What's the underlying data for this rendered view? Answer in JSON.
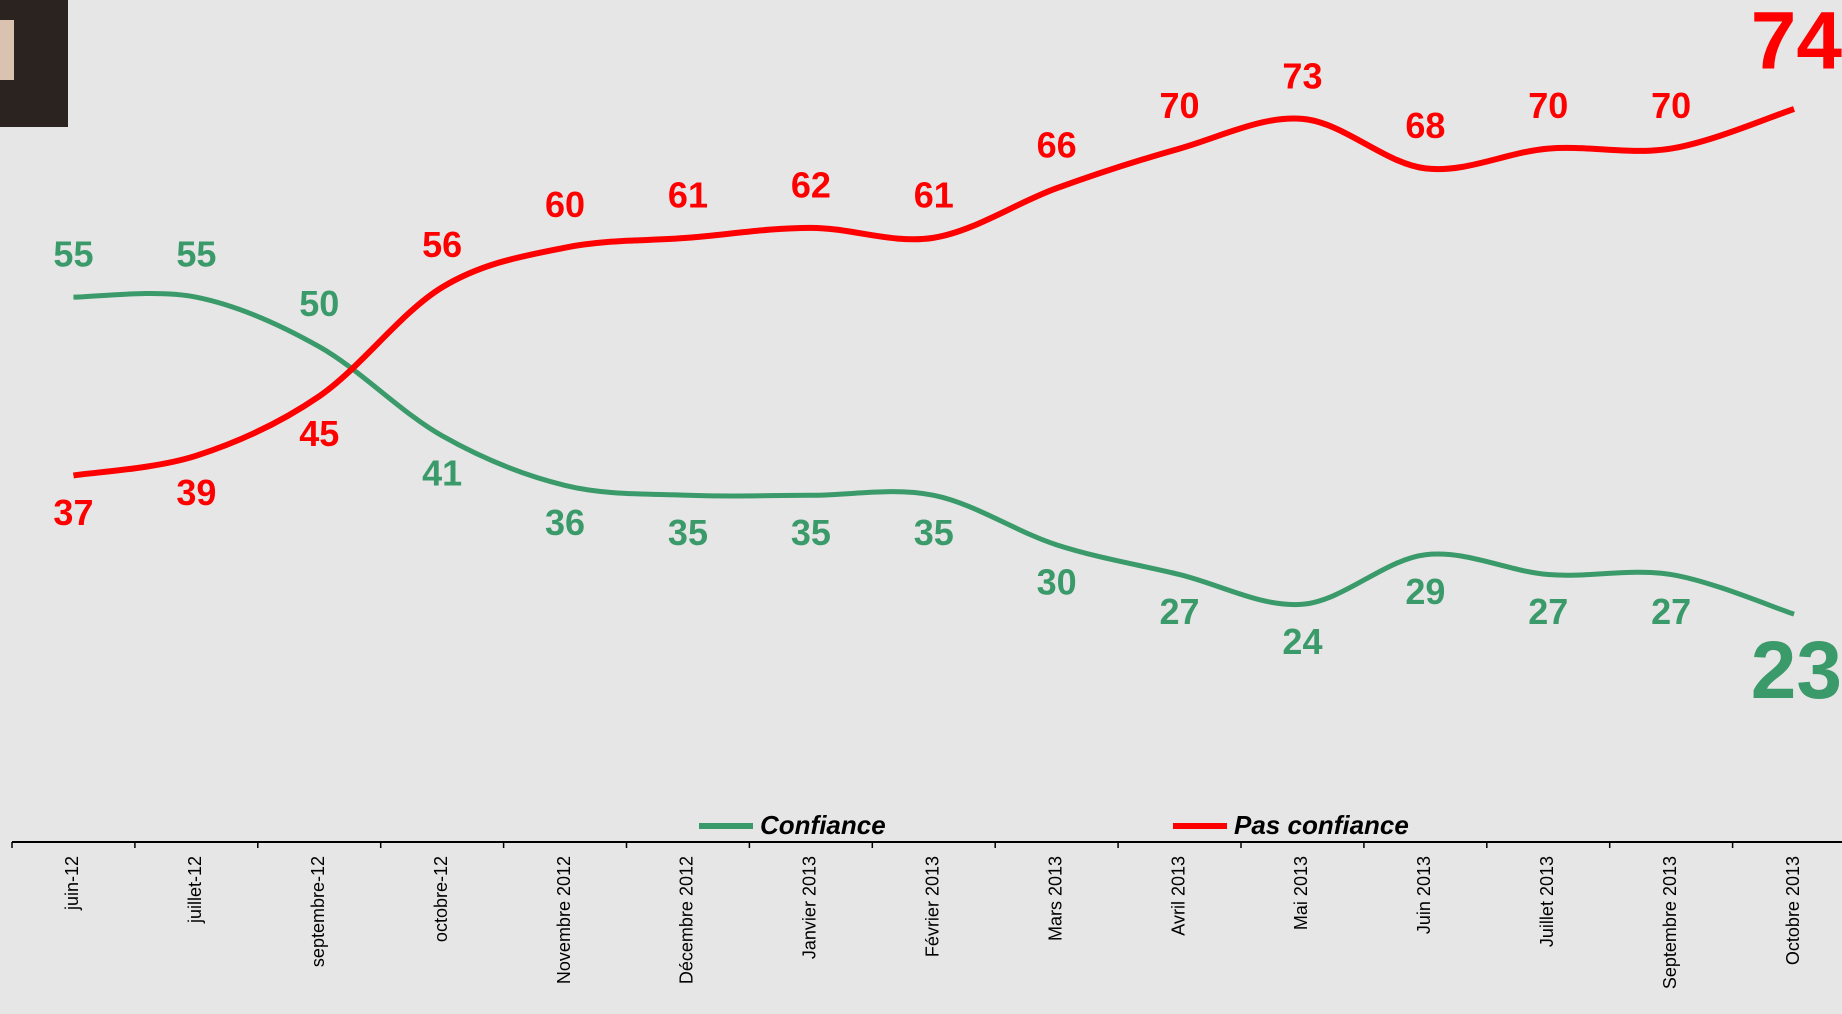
{
  "chart_data": {
    "type": "line",
    "categories": [
      "juin-12",
      "juillet-12",
      "septembre-12",
      "octobre-12",
      "Novembre 2012",
      "Décembre 2012",
      "Janvier 2013",
      "Février 2013",
      "Mars 2013",
      "Avril 2013",
      "Mai 2013",
      "Juin 2013",
      "Juillet 2013",
      "Septembre 2013",
      "Octobre 2013"
    ],
    "series": [
      {
        "name": "Confiance",
        "color": "#3a9a6a",
        "values": [
          55,
          55,
          50,
          41,
          36,
          35,
          35,
          35,
          30,
          27,
          24,
          29,
          27,
          27,
          23
        ]
      },
      {
        "name": "Pas confiance",
        "color": "#ff0000",
        "values": [
          37,
          39,
          45,
          56,
          60,
          61,
          62,
          61,
          66,
          70,
          73,
          68,
          70,
          70,
          74
        ]
      }
    ],
    "ylim": [
      0,
      85
    ]
  }
}
